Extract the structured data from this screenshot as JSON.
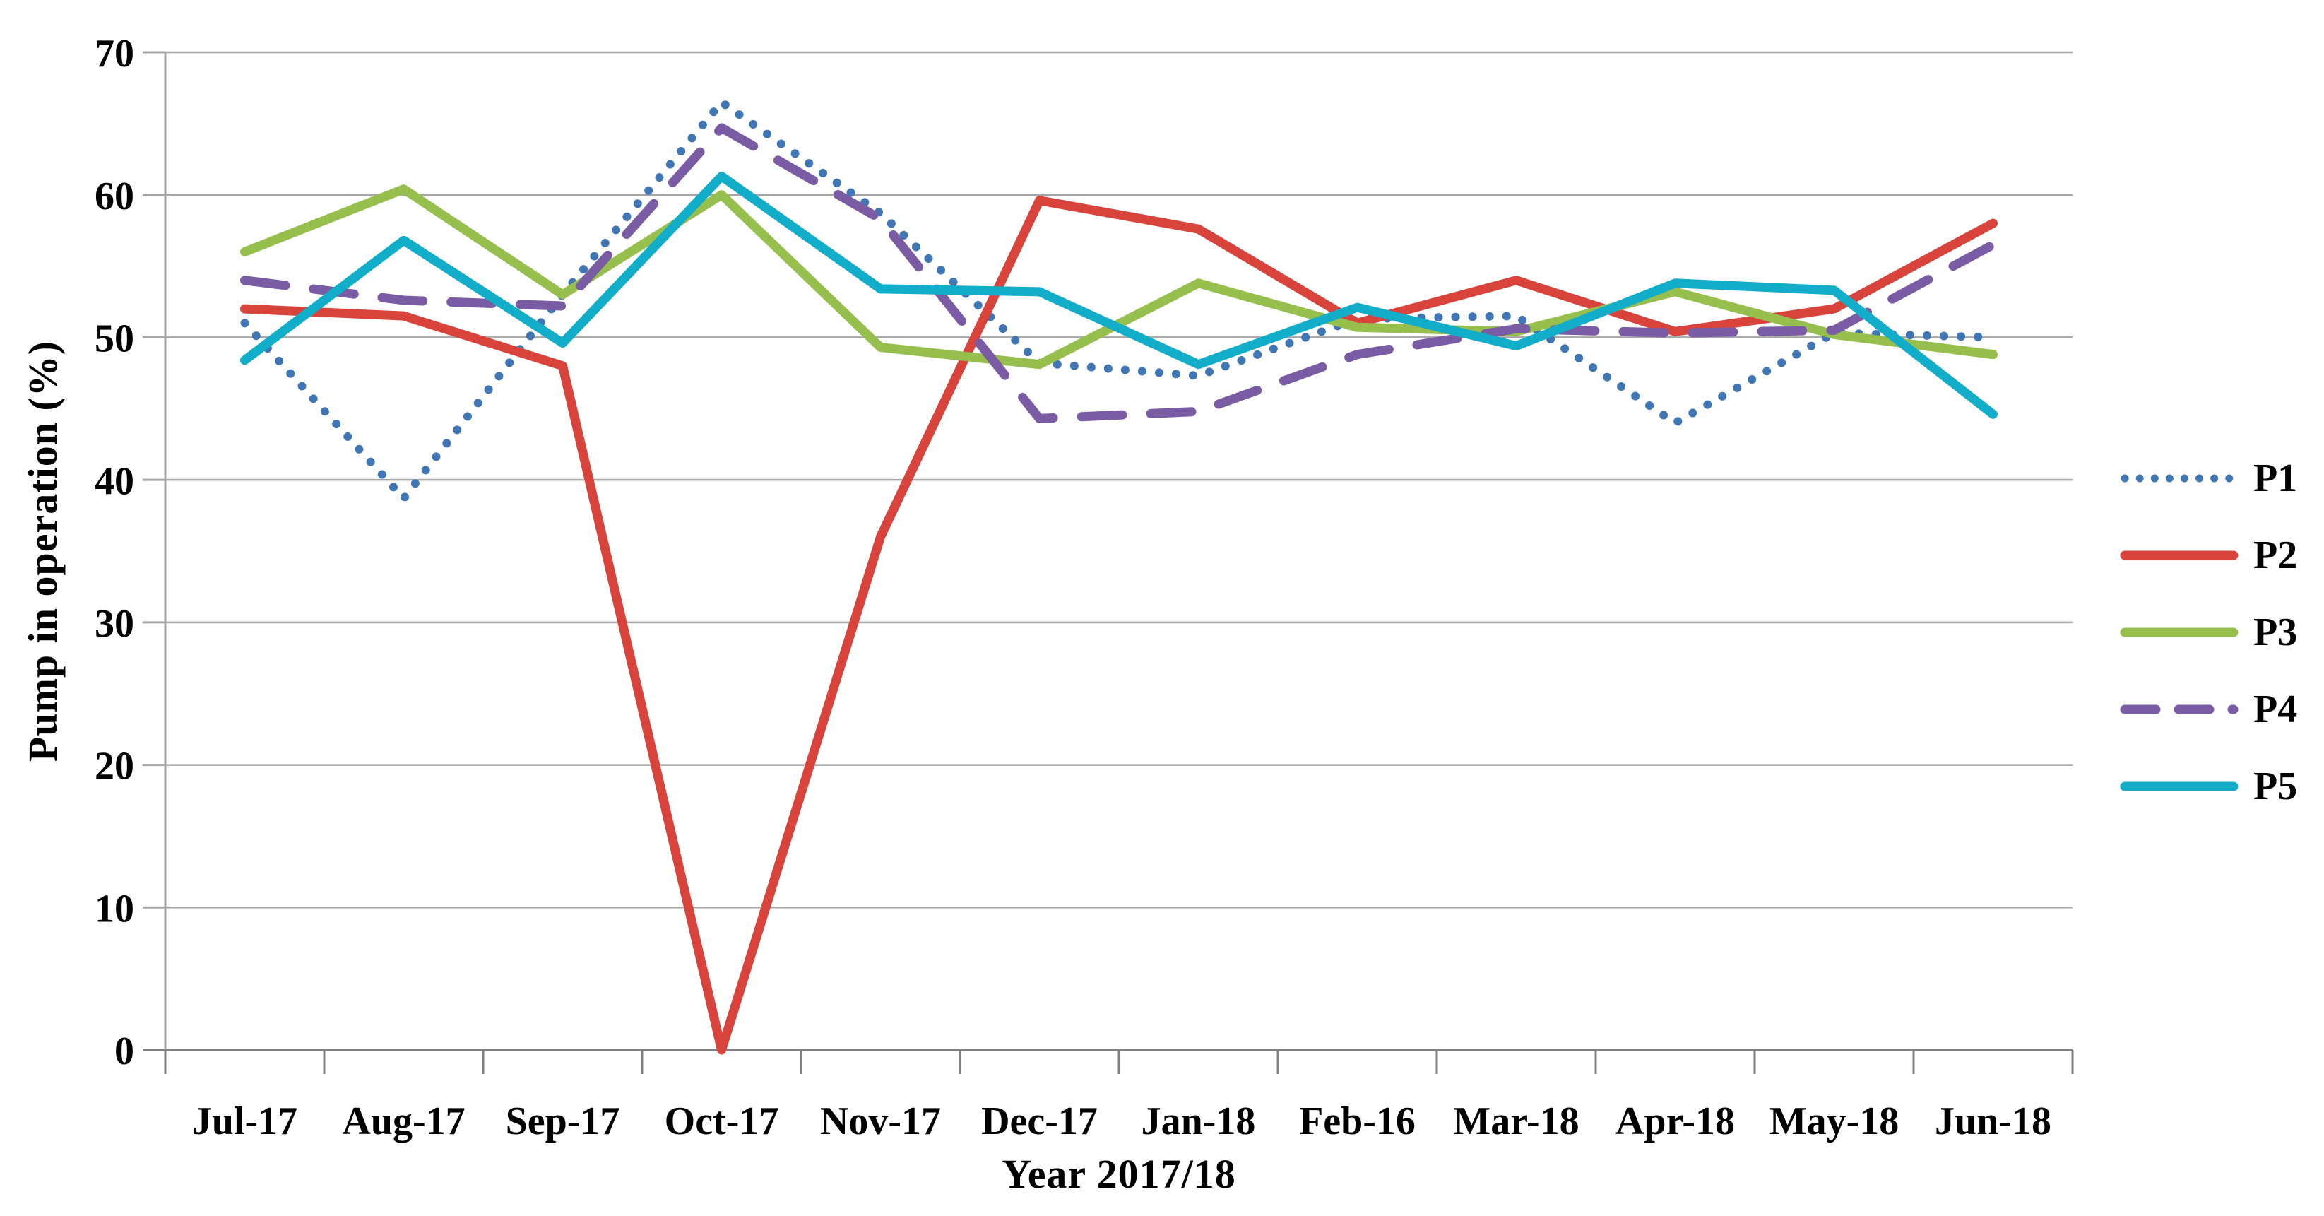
{
  "chart_data": {
    "type": "line",
    "title": "",
    "xlabel": "Year 2017/18",
    "ylabel": "Pump in operation  (%)",
    "categories": [
      "Jul-17",
      "Aug-17",
      "Sep-17",
      "Oct-17",
      "Nov-17",
      "Dec-17",
      "Jan-18",
      "Feb-16",
      "Mar-18",
      "Apr-18",
      "May-18",
      "Jun-18"
    ],
    "series": [
      {
        "name": "P1",
        "style": "dotted",
        "color": "#4076B4",
        "values": [
          51,
          38.7,
          53,
          66.5,
          58.7,
          48.2,
          47.3,
          51.3,
          51.5,
          44,
          50.3,
          50
        ]
      },
      {
        "name": "P2",
        "style": "solid",
        "color": "#D8443C",
        "values": [
          52,
          51.5,
          48,
          0,
          36,
          59.6,
          57.6,
          51,
          54,
          50.4,
          52,
          58
        ]
      },
      {
        "name": "P3",
        "style": "solid",
        "color": "#96BF4D",
        "values": [
          56,
          60.4,
          53,
          60,
          49.3,
          48.1,
          53.8,
          50.7,
          50.4,
          53.2,
          50.2,
          48.8
        ]
      },
      {
        "name": "P4",
        "style": "dashed",
        "color": "#7A5CA5",
        "values": [
          54,
          52.6,
          52.2,
          64.7,
          58.3,
          44.3,
          44.8,
          48.8,
          50.6,
          50.3,
          50.5,
          56.5
        ]
      },
      {
        "name": "P5",
        "style": "solid",
        "color": "#12ADC9",
        "values": [
          48.4,
          56.8,
          49.6,
          61.3,
          53.4,
          53.2,
          48.1,
          52.1,
          49.4,
          53.8,
          53.3,
          44.6
        ]
      }
    ],
    "ylim": [
      0,
      70
    ],
    "y_ticks": [
      0,
      10,
      20,
      30,
      40,
      50,
      60,
      70
    ],
    "grid": "horizontal",
    "legend_position": "right",
    "grid_color": "#A6A6A6",
    "axis_color": "#808080",
    "text_color": "#000000"
  }
}
